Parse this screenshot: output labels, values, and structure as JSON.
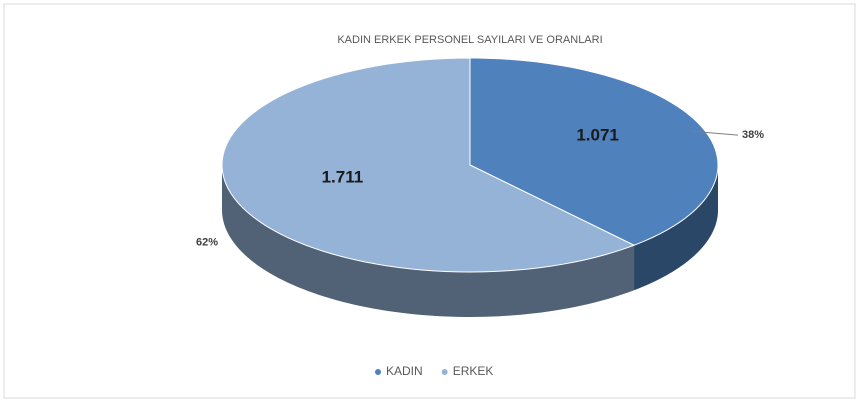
{
  "chart_data": {
    "type": "pie3d",
    "title": "KADIN ERKEK PERSONEL SAYILARI VE ORANLARI",
    "categories": [
      "KADIN",
      "ERKEK"
    ],
    "values": [
      1071,
      1711
    ],
    "value_labels": [
      "1.071",
      "1.711"
    ],
    "percentages": [
      38,
      62
    ],
    "percentage_labels": [
      "38%",
      "62%"
    ],
    "colors": [
      "#4f81bd",
      "#95b3d7"
    ],
    "legend": "bottom"
  }
}
